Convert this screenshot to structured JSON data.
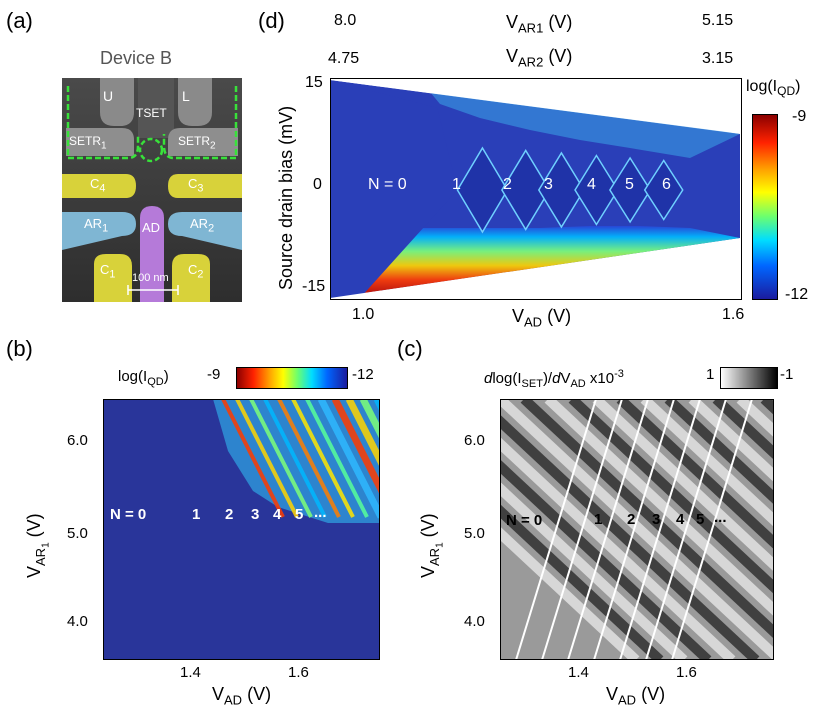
{
  "panels": {
    "a": {
      "label": "(a)",
      "title": "Device B",
      "gates": [
        "U",
        "L",
        "TSET",
        "SETR",
        "1",
        "SETR",
        "2",
        "C",
        "4",
        "C",
        "3",
        "AR",
        "1",
        "AD",
        "AR",
        "2",
        "C",
        "1",
        "C",
        "2"
      ],
      "scale_bar": "100 nm",
      "colors": {
        "bg": "#3a3a3a",
        "yellow": "#d8d23a",
        "blue": "#7fb6d3",
        "purple": "#b57ad9",
        "green": "#38e23a"
      }
    },
    "b": {
      "label": "(b)",
      "cbar_label": "log(I",
      "cbar_sub": "QD",
      "cbar_close": ")",
      "cbar_min": "-9",
      "cbar_max": "-12",
      "xlabel": "V",
      "xlabel_sub": "AD",
      "xlabel_unit": " (V)",
      "ylabel": "V",
      "ylabel_sub": "AR",
      "ylabel_subsub": "1",
      "ylabel_unit": " (V)",
      "xticks": [
        "1.4",
        "1.6"
      ],
      "yticks": [
        "6.0",
        "5.0",
        "4.0"
      ],
      "annotations": [
        "N = 0",
        "1",
        "2",
        "3",
        "4",
        "5",
        "..."
      ]
    },
    "c": {
      "label": "(c)",
      "cbar_label_pre": "d",
      "cbar_label": "log(I",
      "cbar_sub": "SET",
      "cbar_mid": ")/",
      "cbar_d": "d",
      "cbar_v": "V",
      "cbar_vsub": "AD",
      "cbar_exp": " x10",
      "cbar_exp_sup": "-3",
      "cbar_min": "1",
      "cbar_max": "-1",
      "xlabel": "V",
      "xlabel_sub": "AD",
      "xlabel_unit": " (V)",
      "ylabel": "V",
      "ylabel_sub": "AR",
      "ylabel_subsub": "1",
      "ylabel_unit": " (V)",
      "xticks": [
        "1.4",
        "1.6"
      ],
      "yticks": [
        "6.0",
        "5.0",
        "4.0"
      ],
      "annotations": [
        "N = 0",
        "1",
        "2",
        "3",
        "4",
        "5",
        "..."
      ]
    },
    "d": {
      "label": "(d)",
      "top_axis1": {
        "left": "8.0",
        "name": "V",
        "sub": "AR1",
        "unit": " (V)",
        "right": "5.15"
      },
      "top_axis2": {
        "left": "4.75",
        "name": "V",
        "sub": "AR2",
        "unit": " (V)",
        "right": "3.15"
      },
      "ylabel": "Source drain bias (mV)",
      "yticks": [
        "15",
        "0",
        "-15"
      ],
      "xticks": [
        "1.0",
        "1.6"
      ],
      "xlabel": "V",
      "xlabel_sub": "AD",
      "xlabel_unit": " (V)",
      "cbar_label": "log(I",
      "cbar_sub": "QD",
      "cbar_close": ")",
      "cbar_top": "-9",
      "cbar_bottom": "-12",
      "annotations": [
        "N = 0",
        "1",
        "2",
        "3",
        "4",
        "5",
        "6"
      ]
    }
  },
  "chart_data": [
    {
      "type": "heatmap",
      "panel": "d",
      "title": "log(I_QD) vs V_AD and source drain bias",
      "xlabel": "V_AD (V)",
      "ylabel": "Source drain bias (mV)",
      "xlim": [
        1.0,
        1.6
      ],
      "ylim": [
        -15,
        15
      ],
      "top_axes": [
        {
          "label": "V_AR1 (V)",
          "range": [
            8.0,
            5.15
          ]
        },
        {
          "label": "V_AR2 (V)",
          "range": [
            4.75,
            3.15
          ]
        }
      ],
      "colorbar": {
        "label": "log(I_QD)",
        "range": [
          -12,
          -9
        ]
      },
      "electron_numbers": [
        "N = 0",
        "1",
        "2",
        "3",
        "4",
        "5",
        "6"
      ],
      "diamond_centers_VAD": [
        1.222,
        1.285,
        1.337,
        1.388,
        1.437,
        1.486
      ]
    },
    {
      "type": "heatmap",
      "panel": "b",
      "xlabel": "V_AD (V)",
      "ylabel": "V_AR1 (V)",
      "xlim": [
        1.25,
        1.75
      ],
      "ylim": [
        3.5,
        6.5
      ],
      "colorbar": {
        "label": "log(I_QD)",
        "range": [
          -9,
          -12
        ]
      },
      "electron_numbers": [
        "N = 0",
        "1",
        "2",
        "3",
        "4",
        "5",
        "..."
      ]
    },
    {
      "type": "heatmap",
      "panel": "c",
      "xlabel": "V_AD (V)",
      "ylabel": "V_AR1 (V)",
      "xlim": [
        1.25,
        1.75
      ],
      "ylim": [
        3.5,
        6.5
      ],
      "colorbar": {
        "label": "dlog(I_SET)/dV_AD x10^-3",
        "range": [
          1,
          -1
        ]
      },
      "electron_numbers": [
        "N = 0",
        "1",
        "2",
        "3",
        "4",
        "5",
        "..."
      ]
    }
  ]
}
